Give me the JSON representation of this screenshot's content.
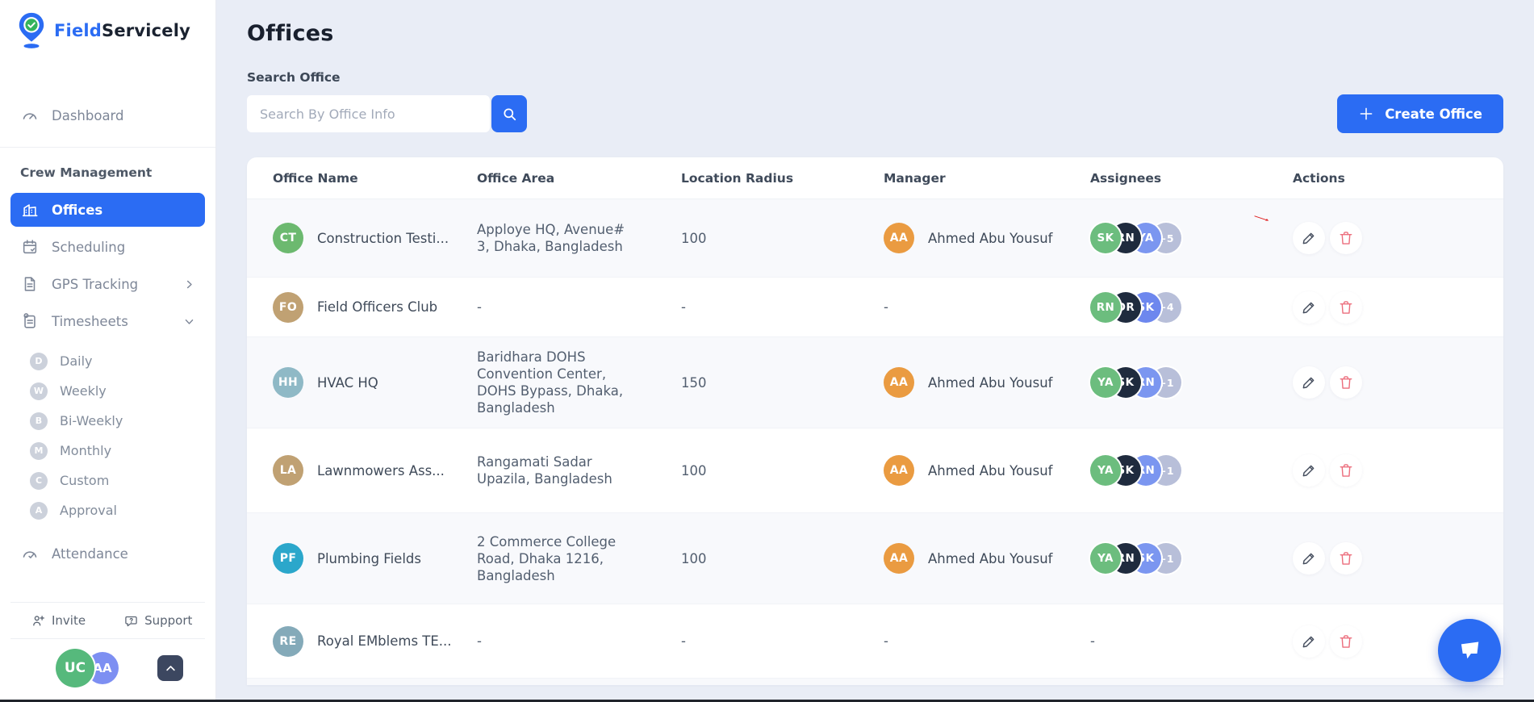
{
  "brand": {
    "name_primary": "Field",
    "name_secondary": "Servicely"
  },
  "colors": {
    "accent_blue": "#2b6cf3",
    "danger_red": "#ec6e7d",
    "annotation_red": "#e01d1d",
    "page_bg": "#e9edf6",
    "assignee_green": "#6cbd7e",
    "assignee_dark": "#1f2b3e",
    "assignee_blue": "#7b96f0",
    "assignee_more": "#b8bfd9",
    "manager_orange": "#ea9b41"
  },
  "sidebar": {
    "dashboard": {
      "icon": "gauge-icon",
      "label": "Dashboard"
    },
    "section_label": "Crew Management",
    "items": [
      {
        "icon": "building-icon",
        "label": "Offices",
        "active": true,
        "chevron": ""
      },
      {
        "icon": "calendar-check-icon",
        "label": "Scheduling",
        "active": false,
        "chevron": ""
      },
      {
        "icon": "document-icon",
        "label": "GPS Tracking",
        "active": false,
        "chevron": "right"
      },
      {
        "icon": "timesheet-icon",
        "label": "Timesheets",
        "active": false,
        "chevron": "down"
      }
    ],
    "sub_items": [
      {
        "badge": "D",
        "label": "Daily"
      },
      {
        "badge": "W",
        "label": "Weekly"
      },
      {
        "badge": "B",
        "label": "Bi-Weekly"
      },
      {
        "badge": "M",
        "label": "Monthly"
      },
      {
        "badge": "C",
        "label": "Custom"
      },
      {
        "badge": "A",
        "label": "Approval"
      }
    ],
    "attendance": {
      "icon": "gauge-check-icon",
      "label": "Attendance"
    },
    "footer": {
      "invite": "Invite",
      "support": "Support",
      "avatars": [
        {
          "initials": "UC",
          "color": "#56b97c"
        },
        {
          "initials": "AA",
          "color": "#7d8ff2"
        }
      ]
    }
  },
  "header": {
    "title": "Offices",
    "search_label": "Search Office",
    "search_placeholder": "Search By Office Info",
    "create_button": "Create Office"
  },
  "table": {
    "columns": [
      "Office Name",
      "Office Area",
      "Location Radius",
      "Manager",
      "Assignees",
      "Actions"
    ],
    "rows": [
      {
        "initials": "CT",
        "avatar_color": "#6cb96f",
        "name": "Construction Testi...",
        "area": "Apploye HQ, Avenue# 3, Dhaka, Bangladesh",
        "radius": "100",
        "manager": {
          "initials": "AA",
          "name": "Ahmed Abu Yousuf",
          "color": "#ea9b41"
        },
        "assignees": [
          {
            "initials": "SK",
            "color": "#6cbd7e"
          },
          {
            "initials": "RN",
            "color": "#1f2b3e"
          },
          {
            "initials": "YA",
            "color": "#7b96f0"
          }
        ],
        "more": "+5",
        "annotated": true
      },
      {
        "initials": "FO",
        "avatar_color": "#c0a173",
        "name": "Field Officers Club",
        "area": "-",
        "radius": "-",
        "manager": null,
        "assignees": [
          {
            "initials": "RN",
            "color": "#6cbd7e"
          },
          {
            "initials": "DR",
            "color": "#1f2b3e"
          },
          {
            "initials": "SK",
            "color": "#6d87ee"
          }
        ],
        "more": "+4",
        "annotated": false
      },
      {
        "initials": "HH",
        "avatar_color": "#8fb9c6",
        "name": "HVAC HQ",
        "area": "Baridhara DOHS Convention Center, DOHS Bypass, Dhaka, Bangladesh",
        "radius": "150",
        "manager": {
          "initials": "AA",
          "name": "Ahmed Abu Yousuf",
          "color": "#ea9b41"
        },
        "assignees": [
          {
            "initials": "YA",
            "color": "#6cbd7e"
          },
          {
            "initials": "SK",
            "color": "#1f2b3e"
          },
          {
            "initials": "RN",
            "color": "#7b96f0"
          }
        ],
        "more": "+1",
        "annotated": false
      },
      {
        "initials": "LA",
        "avatar_color": "#c0a173",
        "name": "Lawnmowers Ass...",
        "area": "Rangamati Sadar Upazila, Bangladesh",
        "radius": "100",
        "manager": {
          "initials": "AA",
          "name": "Ahmed Abu Yousuf",
          "color": "#ea9b41"
        },
        "assignees": [
          {
            "initials": "YA",
            "color": "#6cbd7e"
          },
          {
            "initials": "SK",
            "color": "#1f2b3e"
          },
          {
            "initials": "RN",
            "color": "#7b96f0"
          }
        ],
        "more": "+1",
        "annotated": false
      },
      {
        "initials": "PF",
        "avatar_color": "#2ba7cb",
        "name": "Plumbing Fields",
        "area": "2 Commerce College Road, Dhaka 1216, Bangladesh",
        "radius": "100",
        "manager": {
          "initials": "AA",
          "name": "Ahmed Abu Yousuf",
          "color": "#ea9b41"
        },
        "assignees": [
          {
            "initials": "YA",
            "color": "#6cbd7e"
          },
          {
            "initials": "RN",
            "color": "#1f2b3e"
          },
          {
            "initials": "SK",
            "color": "#7b96f0"
          }
        ],
        "more": "+1",
        "annotated": false
      },
      {
        "initials": "RE",
        "avatar_color": "#84aab9",
        "name": "Royal EMblems TE...",
        "area": "-",
        "radius": "-",
        "manager": null,
        "assignees": [],
        "more": "-",
        "annotated": false
      }
    ]
  }
}
